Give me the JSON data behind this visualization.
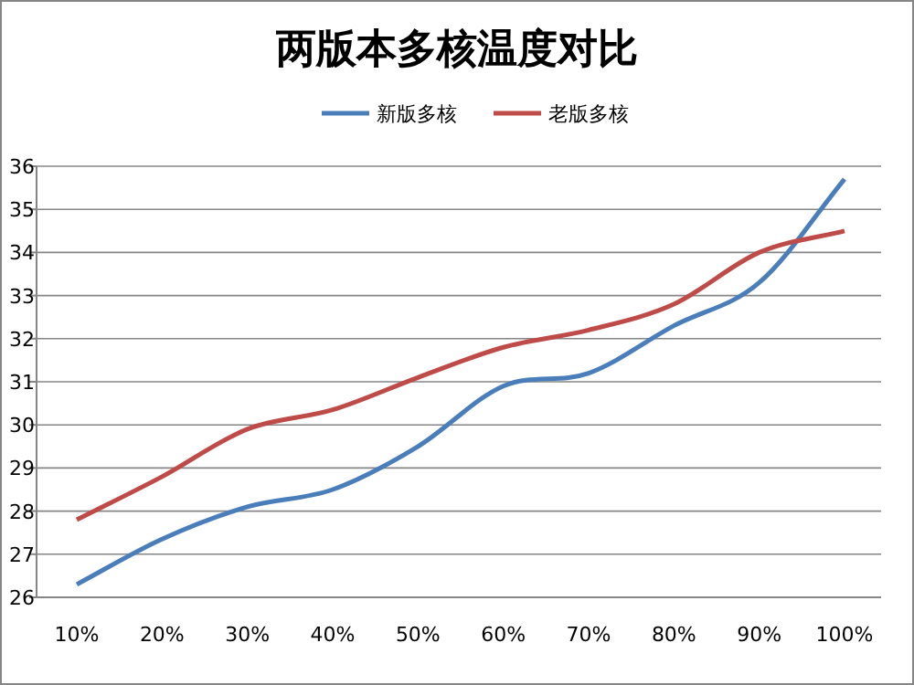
{
  "chart_data": {
    "type": "line",
    "title": "两版本多核温度对比",
    "categories": [
      "10%",
      "20%",
      "30%",
      "40%",
      "50%",
      "60%",
      "70%",
      "80%",
      "90%",
      "100%"
    ],
    "series": [
      {
        "name": "新版多核",
        "color": "#4a7ebb",
        "values": [
          26.3,
          27.35,
          28.1,
          28.5,
          29.5,
          30.9,
          31.2,
          32.3,
          33.3,
          35.7
        ]
      },
      {
        "name": "老版多核",
        "color": "#be4b48",
        "values": [
          27.8,
          28.8,
          29.9,
          30.35,
          31.1,
          31.8,
          32.2,
          32.8,
          34.0,
          34.5
        ]
      }
    ],
    "ylim": [
      26,
      36
    ],
    "yticks": [
      26,
      27,
      28,
      29,
      30,
      31,
      32,
      33,
      34,
      35,
      36
    ],
    "grid": "y",
    "legend": "top",
    "marker": "none",
    "line_style": "solid"
  }
}
